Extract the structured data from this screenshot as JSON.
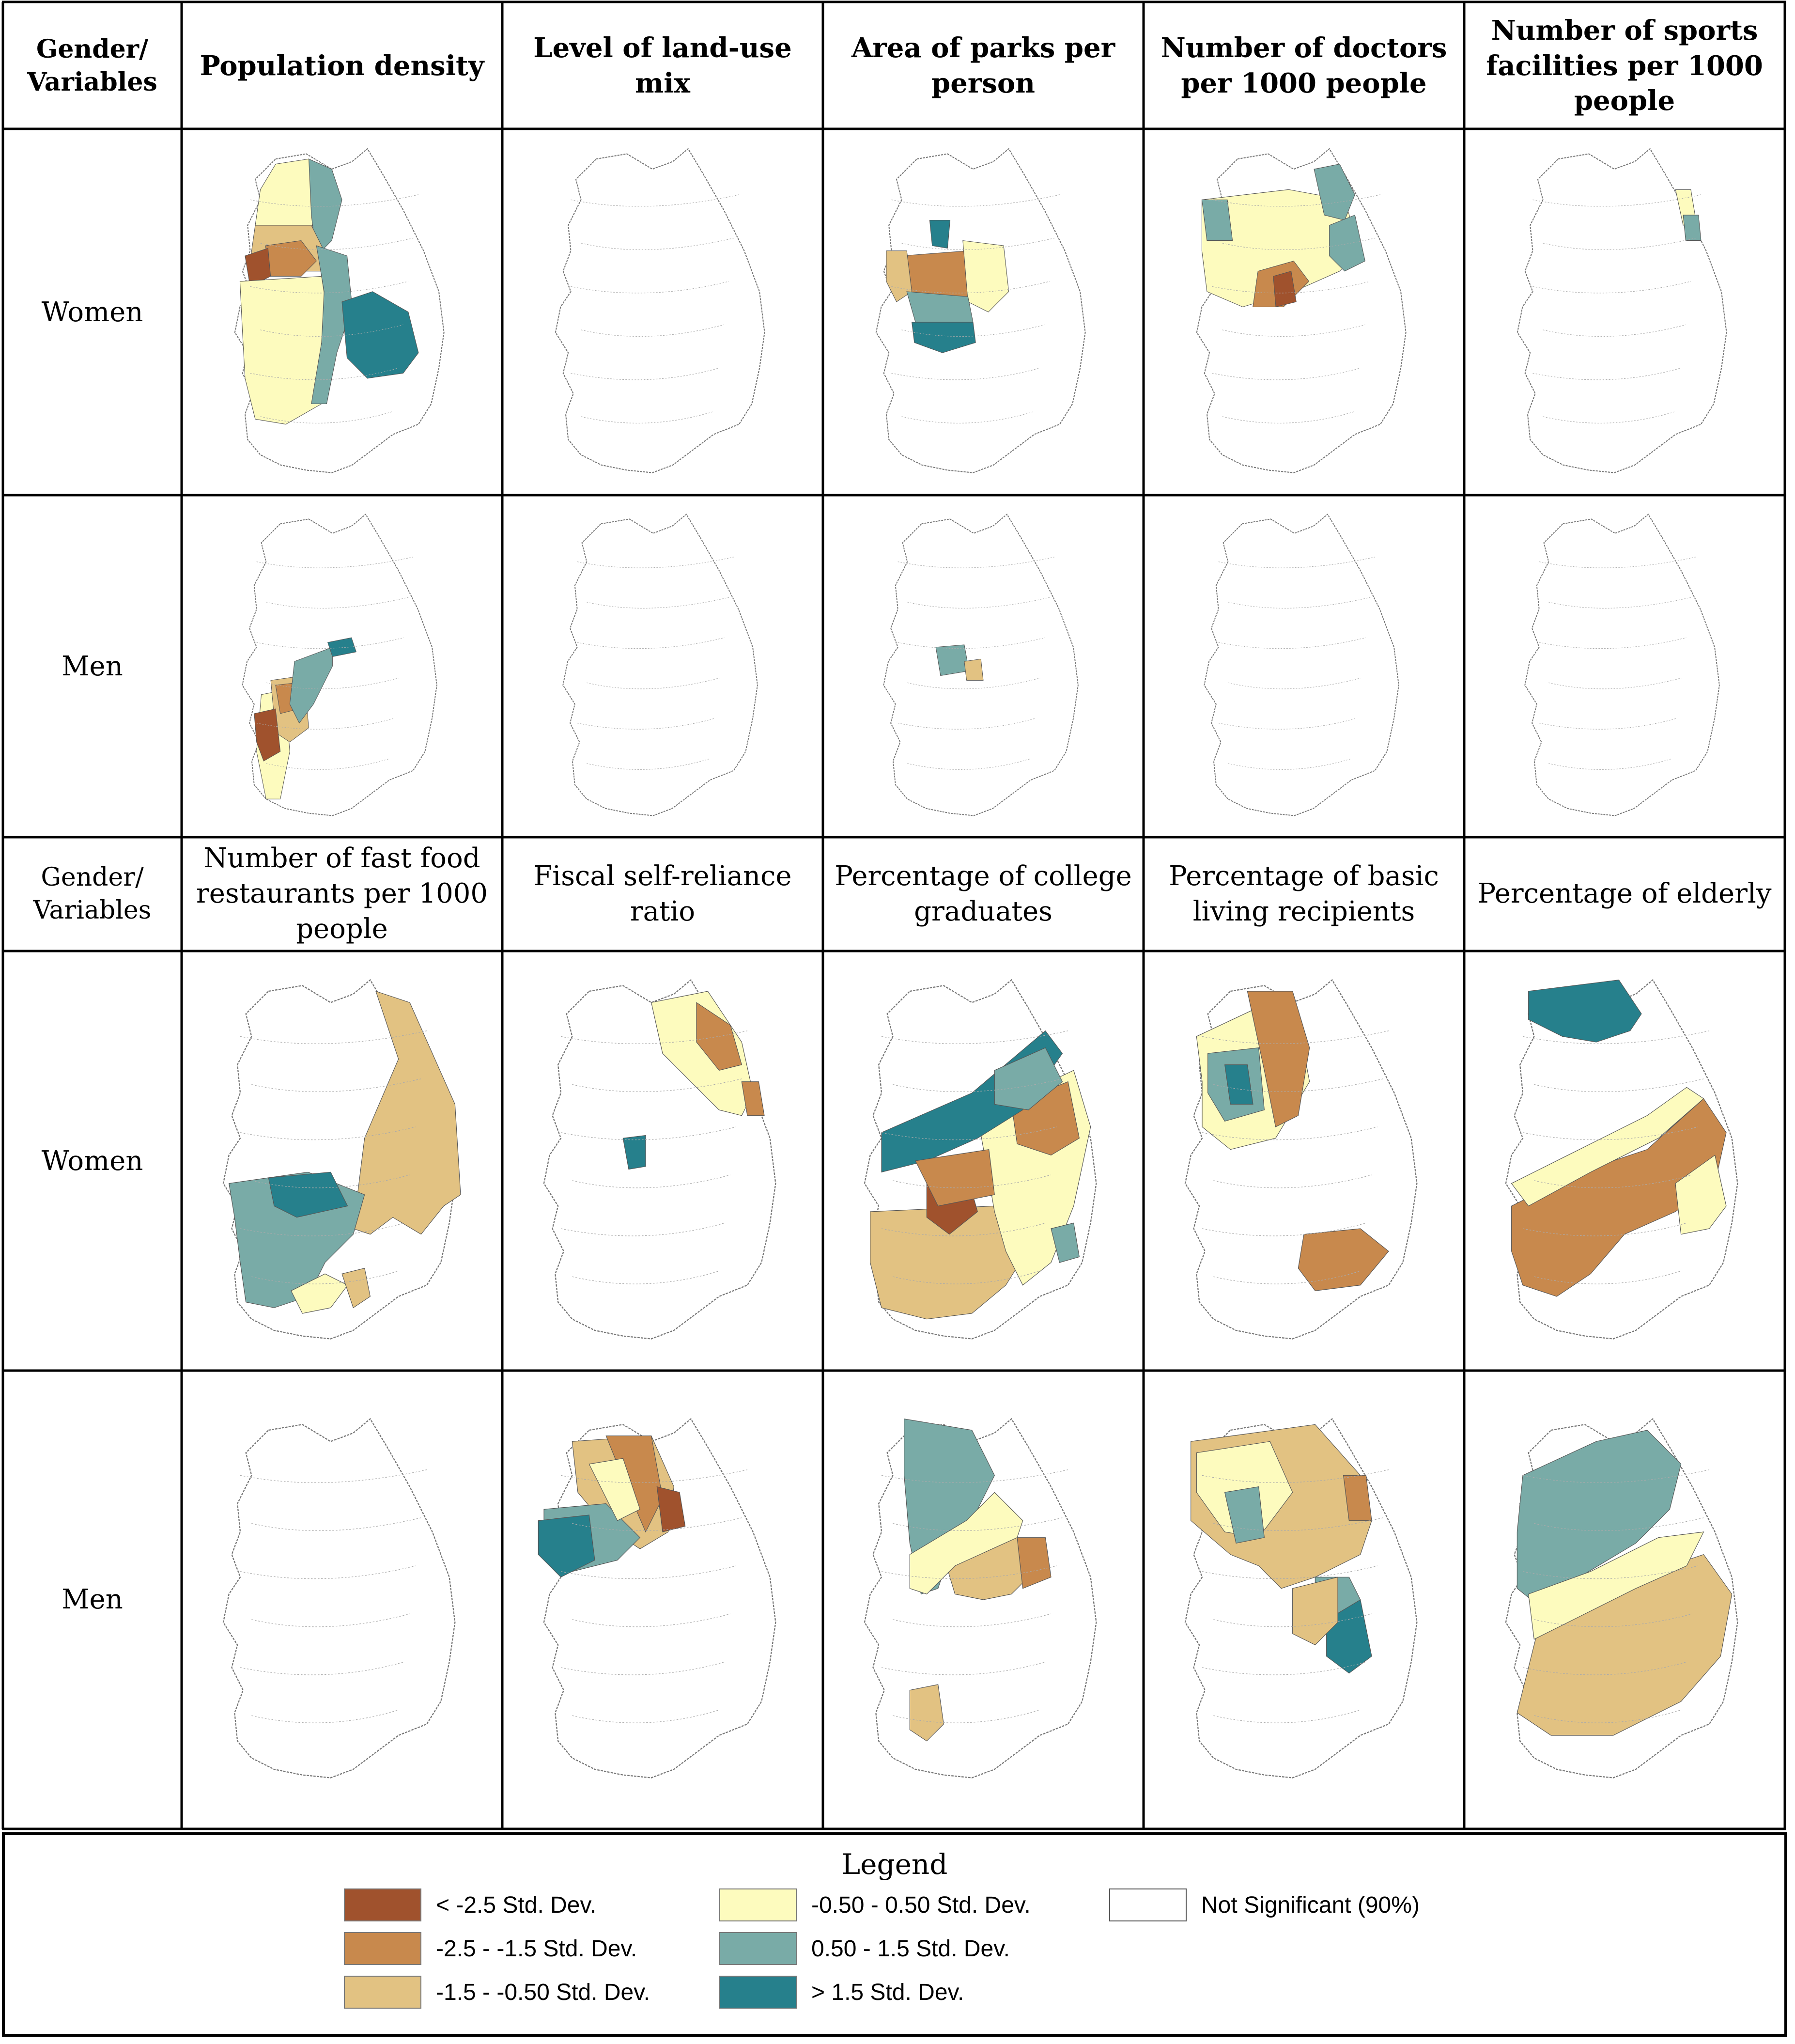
{
  "colors": {
    "lt_-2.5": "#a0522d",
    "-2.5_-1.5": "#c8894d",
    "-1.5_-0.5": "#e2c282",
    "-0.5_0.5": "#fdfbbe",
    "0.5_1.5": "#79aba7",
    "gt_1.5": "#26808c",
    "not_significant": "#ffffff"
  },
  "top_header": {
    "corner": "Gender/ Variables",
    "columns": [
      "Population density",
      "Level of land-use mix",
      "Area of parks per person",
      "Number of doctors per 1000 people",
      "Number of sports facilities per 1000 people"
    ]
  },
  "bottom_header": {
    "corner": "Gender/ Variables",
    "columns": [
      "Number of fast food restaurants per 1000 people",
      "Fiscal self-reliance ratio",
      "Percentage of college graduates",
      "Percentage of basic living recipients",
      "Percentage of elderly"
    ]
  },
  "rows": {
    "r1": "Women",
    "r2": "Men",
    "r3": "Women",
    "r4": "Men"
  },
  "legend": {
    "title": "Legend",
    "items": [
      {
        "key": "lt_-2.5",
        "label": "< -2.5 Std. Dev."
      },
      {
        "key": "-2.5_-1.5",
        "label": "-2.5 - -1.5 Std. Dev."
      },
      {
        "key": "-1.5_-0.5",
        "label": "-1.5 - -0.50 Std. Dev."
      },
      {
        "key": "-0.5_0.5",
        "label": "-0.50 - 0.50 Std. Dev."
      },
      {
        "key": "0.5_1.5",
        "label": "0.50 - 1.5 Std. Dev."
      },
      {
        "key": "gt_1.5",
        "label": "> 1.5 Std. Dev."
      },
      {
        "key": "not_significant",
        "label": "Not Significant (90%)"
      }
    ]
  },
  "maps": [
    {
      "id": "women-population-density",
      "regions": [
        {
          "shape": "nw",
          "class": "-0.5_0.5"
        },
        {
          "shape": "ne_top",
          "class": "0.5_1.5"
        },
        {
          "shape": "west",
          "class": "-1.5_-0.5"
        },
        {
          "shape": "wc",
          "class": "-2.5_-1.5"
        },
        {
          "shape": "westcoast",
          "class": "lt_-2.5"
        },
        {
          "shape": "sw",
          "class": "-0.5_0.5"
        },
        {
          "shape": "central_strip",
          "class": "0.5_1.5"
        },
        {
          "shape": "se",
          "class": "gt_1.5"
        }
      ]
    },
    {
      "id": "women-land-use-mix",
      "regions": []
    },
    {
      "id": "women-parks",
      "regions": [
        {
          "shape": "parks_mid",
          "class": "-2.5_-1.5"
        },
        {
          "shape": "parks_west",
          "class": "-1.5_-0.5"
        },
        {
          "shape": "parks_east",
          "class": "-0.5_0.5"
        },
        {
          "shape": "parks_top",
          "class": "gt_1.5"
        },
        {
          "shape": "parks_mid2",
          "class": "0.5_1.5"
        },
        {
          "shape": "parks_bottom",
          "class": "gt_1.5"
        }
      ]
    },
    {
      "id": "women-doctors",
      "regions": [
        {
          "shape": "doc_main",
          "class": "-0.5_0.5"
        },
        {
          "shape": "doc_ne",
          "class": "0.5_1.5"
        },
        {
          "shape": "doc_nw",
          "class": "0.5_1.5"
        },
        {
          "shape": "doc_c",
          "class": "-2.5_-1.5"
        },
        {
          "shape": "doc_c2",
          "class": "lt_-2.5"
        },
        {
          "shape": "doc_e",
          "class": "0.5_1.5"
        }
      ]
    },
    {
      "id": "women-sports",
      "regions": [
        {
          "shape": "sport_ne",
          "class": "-0.5_0.5"
        },
        {
          "shape": "sport_ne2",
          "class": "0.5_1.5"
        }
      ]
    },
    {
      "id": "men-population-density",
      "regions": [
        {
          "shape": "m_west",
          "class": "-0.5_0.5"
        },
        {
          "shape": "m_west2",
          "class": "-1.5_-0.5"
        },
        {
          "shape": "m_west3",
          "class": "-2.5_-1.5"
        },
        {
          "shape": "m_coast",
          "class": "lt_-2.5"
        },
        {
          "shape": "m_strip",
          "class": "0.5_1.5"
        },
        {
          "shape": "m_blob",
          "class": "gt_1.5"
        }
      ]
    },
    {
      "id": "men-land-use-mix",
      "regions": []
    },
    {
      "id": "men-parks",
      "regions": [
        {
          "shape": "mp_a",
          "class": "0.5_1.5"
        },
        {
          "shape": "mp_b",
          "class": "-1.5_-0.5"
        }
      ]
    },
    {
      "id": "men-doctors",
      "regions": []
    },
    {
      "id": "men-sports",
      "regions": []
    },
    {
      "id": "women-fast-food",
      "regions": [
        {
          "shape": "ff_east",
          "class": "-1.5_-0.5"
        },
        {
          "shape": "ff_west",
          "class": "0.5_1.5"
        },
        {
          "shape": "ff_wtop",
          "class": "gt_1.5"
        },
        {
          "shape": "ff_s",
          "class": "-0.5_0.5"
        },
        {
          "shape": "ff_s2",
          "class": "-1.5_-0.5"
        }
      ]
    },
    {
      "id": "women-fiscal",
      "regions": [
        {
          "shape": "fs_ne",
          "class": "-0.5_0.5"
        },
        {
          "shape": "fs_ne2",
          "class": "-2.5_-1.5"
        },
        {
          "shape": "fs_ne3",
          "class": "-2.5_-1.5"
        },
        {
          "shape": "fs_c",
          "class": "gt_1.5"
        }
      ]
    },
    {
      "id": "women-college",
      "regions": [
        {
          "shape": "cg_south",
          "class": "-1.5_-0.5"
        },
        {
          "shape": "cg_east",
          "class": "-0.5_0.5"
        },
        {
          "shape": "cg_east2",
          "class": "-2.5_-1.5"
        },
        {
          "shape": "cg_band",
          "class": "gt_1.5"
        },
        {
          "shape": "cg_band2",
          "class": "0.5_1.5"
        },
        {
          "shape": "cg_c",
          "class": "lt_-2.5"
        },
        {
          "shape": "cg_c2",
          "class": "-2.5_-1.5"
        },
        {
          "shape": "cg_se",
          "class": "0.5_1.5"
        }
      ]
    },
    {
      "id": "women-basic-living",
      "regions": [
        {
          "shape": "bl_n",
          "class": "-0.5_0.5"
        },
        {
          "shape": "bl_n2",
          "class": "-2.5_-1.5"
        },
        {
          "shape": "bl_n3",
          "class": "0.5_1.5"
        },
        {
          "shape": "bl_n4",
          "class": "gt_1.5"
        },
        {
          "shape": "bl_se",
          "class": "-2.5_-1.5"
        }
      ]
    },
    {
      "id": "women-elderly",
      "regions": [
        {
          "shape": "el_south",
          "class": "-2.5_-1.5"
        },
        {
          "shape": "el_band",
          "class": "-0.5_0.5"
        },
        {
          "shape": "el_e",
          "class": "-0.5_0.5"
        },
        {
          "shape": "el_n",
          "class": "gt_1.5"
        }
      ]
    },
    {
      "id": "men-fast-food",
      "regions": []
    },
    {
      "id": "men-fiscal",
      "regions": [
        {
          "shape": "mf_a",
          "class": "-1.5_-0.5"
        },
        {
          "shape": "mf_b",
          "class": "-2.5_-1.5"
        },
        {
          "shape": "mf_c",
          "class": "lt_-2.5"
        },
        {
          "shape": "mf_d",
          "class": "0.5_1.5"
        },
        {
          "shape": "mf_e",
          "class": "gt_1.5"
        },
        {
          "shape": "mf_f",
          "class": "-0.5_0.5"
        }
      ]
    },
    {
      "id": "men-college",
      "regions": [
        {
          "shape": "mc_n",
          "class": "0.5_1.5"
        },
        {
          "shape": "mc_s",
          "class": "-1.5_-0.5"
        },
        {
          "shape": "mc_y",
          "class": "-0.5_0.5"
        },
        {
          "shape": "mc_e",
          "class": "-2.5_-1.5"
        },
        {
          "shape": "mc_sw",
          "class": "-1.5_-0.5"
        }
      ]
    },
    {
      "id": "men-basic-living",
      "regions": [
        {
          "shape": "mb_n",
          "class": "-1.5_-0.5"
        },
        {
          "shape": "mb_y",
          "class": "-0.5_0.5"
        },
        {
          "shape": "mb_t",
          "class": "0.5_1.5"
        },
        {
          "shape": "mb_se",
          "class": "gt_1.5"
        },
        {
          "shape": "mb_se2",
          "class": "0.5_1.5"
        },
        {
          "shape": "mb_e",
          "class": "-2.5_-1.5"
        },
        {
          "shape": "mb_s",
          "class": "-1.5_-0.5"
        }
      ]
    },
    {
      "id": "men-elderly",
      "regions": [
        {
          "shape": "me_s",
          "class": "-1.5_-0.5"
        },
        {
          "shape": "me_n",
          "class": "0.5_1.5"
        },
        {
          "shape": "me_y",
          "class": "-0.5_0.5"
        }
      ]
    }
  ]
}
